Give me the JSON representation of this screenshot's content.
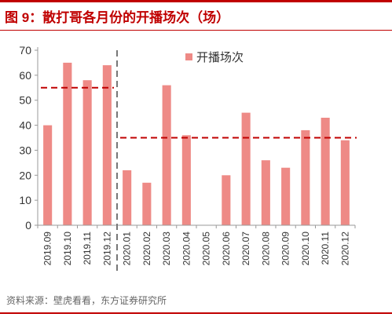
{
  "header": {
    "title": "图 9：散打哥各月份的开播场次（场）"
  },
  "footer": {
    "source": "资料来源：壁虎看看，东方证券研究所"
  },
  "chart_data": {
    "type": "bar",
    "title": "图 9：散打哥各月份的开播场次（场）",
    "xlabel": "",
    "ylabel": "",
    "ylim": [
      0,
      70
    ],
    "yticks": [
      0,
      10,
      20,
      30,
      40,
      50,
      60,
      70
    ],
    "grid": false,
    "legend": "top-center",
    "categories": [
      "2019.09",
      "2019.10",
      "2019.11",
      "2019.12",
      "2020.01",
      "2020.02",
      "2020.03",
      "2020.04",
      "2020.05",
      "2020.06",
      "2020.07",
      "2020.08",
      "2020.09",
      "2020.10",
      "2020.11",
      "2020.12"
    ],
    "series": [
      {
        "name": "开播场次",
        "color": "#ee8a86",
        "values": [
          40,
          65,
          58,
          64,
          22,
          17,
          56,
          36,
          0,
          20,
          45,
          26,
          23,
          38,
          43,
          34
        ]
      }
    ],
    "annotations": [
      {
        "type": "hline",
        "value": 55,
        "category_from": "2019.09",
        "category_to": "2019.12",
        "color": "#c00000",
        "style": "dashed"
      },
      {
        "type": "hline",
        "value": 35,
        "category_from": "2020.01",
        "category_to": "2020.12",
        "color": "#c00000",
        "style": "dashed"
      },
      {
        "type": "vline",
        "between": [
          "2019.12",
          "2020.01"
        ],
        "color": "#777777",
        "style": "dashed"
      }
    ]
  }
}
